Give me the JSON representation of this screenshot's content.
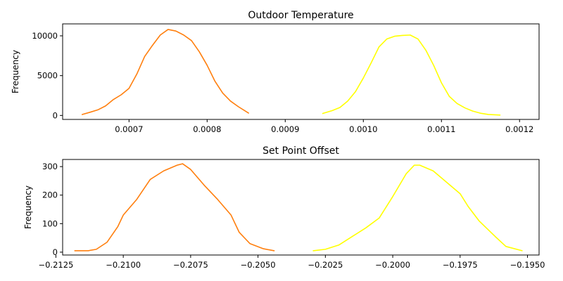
{
  "chart_data": [
    {
      "type": "line",
      "title": "Outdoor Temperature",
      "xlabel": "",
      "ylabel": "Frequency",
      "xlim": [
        0.000615,
        0.001225
      ],
      "ylim": [
        -500,
        11500
      ],
      "xticks": [
        0.0007,
        0.0008,
        0.0009,
        0.001,
        0.0011,
        0.0012
      ],
      "xtick_labels": [
        "0.0007",
        "0.0008",
        "0.0009",
        "0.0010",
        "0.0011",
        "0.0012"
      ],
      "yticks": [
        0,
        5000,
        10000
      ],
      "ytick_labels": [
        "0",
        "5000",
        "10000"
      ],
      "grid": false,
      "series": [
        {
          "color": "#ff7f0e",
          "points": [
            [
              0.00064,
              120
            ],
            [
              0.00065,
              400
            ],
            [
              0.00066,
              700
            ],
            [
              0.00067,
              1200
            ],
            [
              0.00068,
              2000
            ],
            [
              0.00069,
              2600
            ],
            [
              0.0007,
              3400
            ],
            [
              0.00071,
              5200
            ],
            [
              0.00072,
              7400
            ],
            [
              0.00073,
              8800
            ],
            [
              0.00074,
              10100
            ],
            [
              0.00075,
              10800
            ],
            [
              0.00076,
              10600
            ],
            [
              0.00077,
              10100
            ],
            [
              0.00078,
              9400
            ],
            [
              0.00079,
              8000
            ],
            [
              0.0008,
              6300
            ],
            [
              0.00081,
              4300
            ],
            [
              0.00082,
              2800
            ],
            [
              0.00083,
              1800
            ],
            [
              0.00084,
              1100
            ],
            [
              0.000853,
              300
            ]
          ]
        },
        {
          "color": "#ffff00",
          "points": [
            [
              0.000948,
              250
            ],
            [
              0.00096,
              600
            ],
            [
              0.00097,
              1000
            ],
            [
              0.00098,
              1800
            ],
            [
              0.00099,
              3000
            ],
            [
              0.001,
              4700
            ],
            [
              0.00101,
              6600
            ],
            [
              0.00102,
              8600
            ],
            [
              0.00103,
              9600
            ],
            [
              0.00104,
              9950
            ],
            [
              0.00105,
              10050
            ],
            [
              0.00106,
              10100
            ],
            [
              0.00107,
              9600
            ],
            [
              0.00108,
              8200
            ],
            [
              0.00109,
              6300
            ],
            [
              0.0011,
              4100
            ],
            [
              0.00111,
              2400
            ],
            [
              0.00112,
              1500
            ],
            [
              0.00113,
              950
            ],
            [
              0.00114,
              550
            ],
            [
              0.00115,
              280
            ],
            [
              0.00116,
              120
            ],
            [
              0.001175,
              50
            ]
          ]
        }
      ]
    },
    {
      "type": "line",
      "title": "Set Point Offset",
      "xlabel": "",
      "ylabel": "Frequency",
      "xlim": [
        -0.21225,
        -0.19457
      ],
      "ylim": [
        -10,
        325
      ],
      "xticks": [
        -0.2125,
        -0.21,
        -0.2075,
        -0.205,
        -0.2025,
        -0.2,
        -0.1975,
        -0.195
      ],
      "xtick_labels": [
        "−0.2125",
        "−0.2100",
        "−0.2075",
        "−0.2050",
        "−0.2025",
        "−0.2000",
        "−0.1975",
        "−0.1950"
      ],
      "yticks": [
        0,
        100,
        200,
        300
      ],
      "ytick_labels": [
        "0",
        "100",
        "200",
        "300"
      ],
      "grid": false,
      "series": [
        {
          "color": "#ff7f0e",
          "points": [
            [
              -0.2118,
              5
            ],
            [
              -0.2113,
              5
            ],
            [
              -0.211,
              10
            ],
            [
              -0.2106,
              35
            ],
            [
              -0.2102,
              90
            ],
            [
              -0.21,
              130
            ],
            [
              -0.2095,
              185
            ],
            [
              -0.209,
              255
            ],
            [
              -0.2085,
              285
            ],
            [
              -0.208,
              305
            ],
            [
              -0.2078,
              310
            ],
            [
              -0.2075,
              290
            ],
            [
              -0.207,
              235
            ],
            [
              -0.2065,
              185
            ],
            [
              -0.206,
              130
            ],
            [
              -0.2057,
              70
            ],
            [
              -0.2053,
              30
            ],
            [
              -0.2048,
              12
            ],
            [
              -0.2044,
              5
            ]
          ]
        },
        {
          "color": "#ffff00",
          "points": [
            [
              -0.20295,
              5
            ],
            [
              -0.2025,
              10
            ],
            [
              -0.202,
              25
            ],
            [
              -0.2015,
              55
            ],
            [
              -0.201,
              85
            ],
            [
              -0.2005,
              120
            ],
            [
              -0.2,
              195
            ],
            [
              -0.1995,
              275
            ],
            [
              -0.1992,
              305
            ],
            [
              -0.199,
              305
            ],
            [
              -0.1985,
              285
            ],
            [
              -0.198,
              245
            ],
            [
              -0.1975,
              205
            ],
            [
              -0.1972,
              160
            ],
            [
              -0.1968,
              110
            ],
            [
              -0.1962,
              55
            ],
            [
              -0.1958,
              20
            ],
            [
              -0.1952,
              5
            ]
          ]
        }
      ]
    }
  ]
}
